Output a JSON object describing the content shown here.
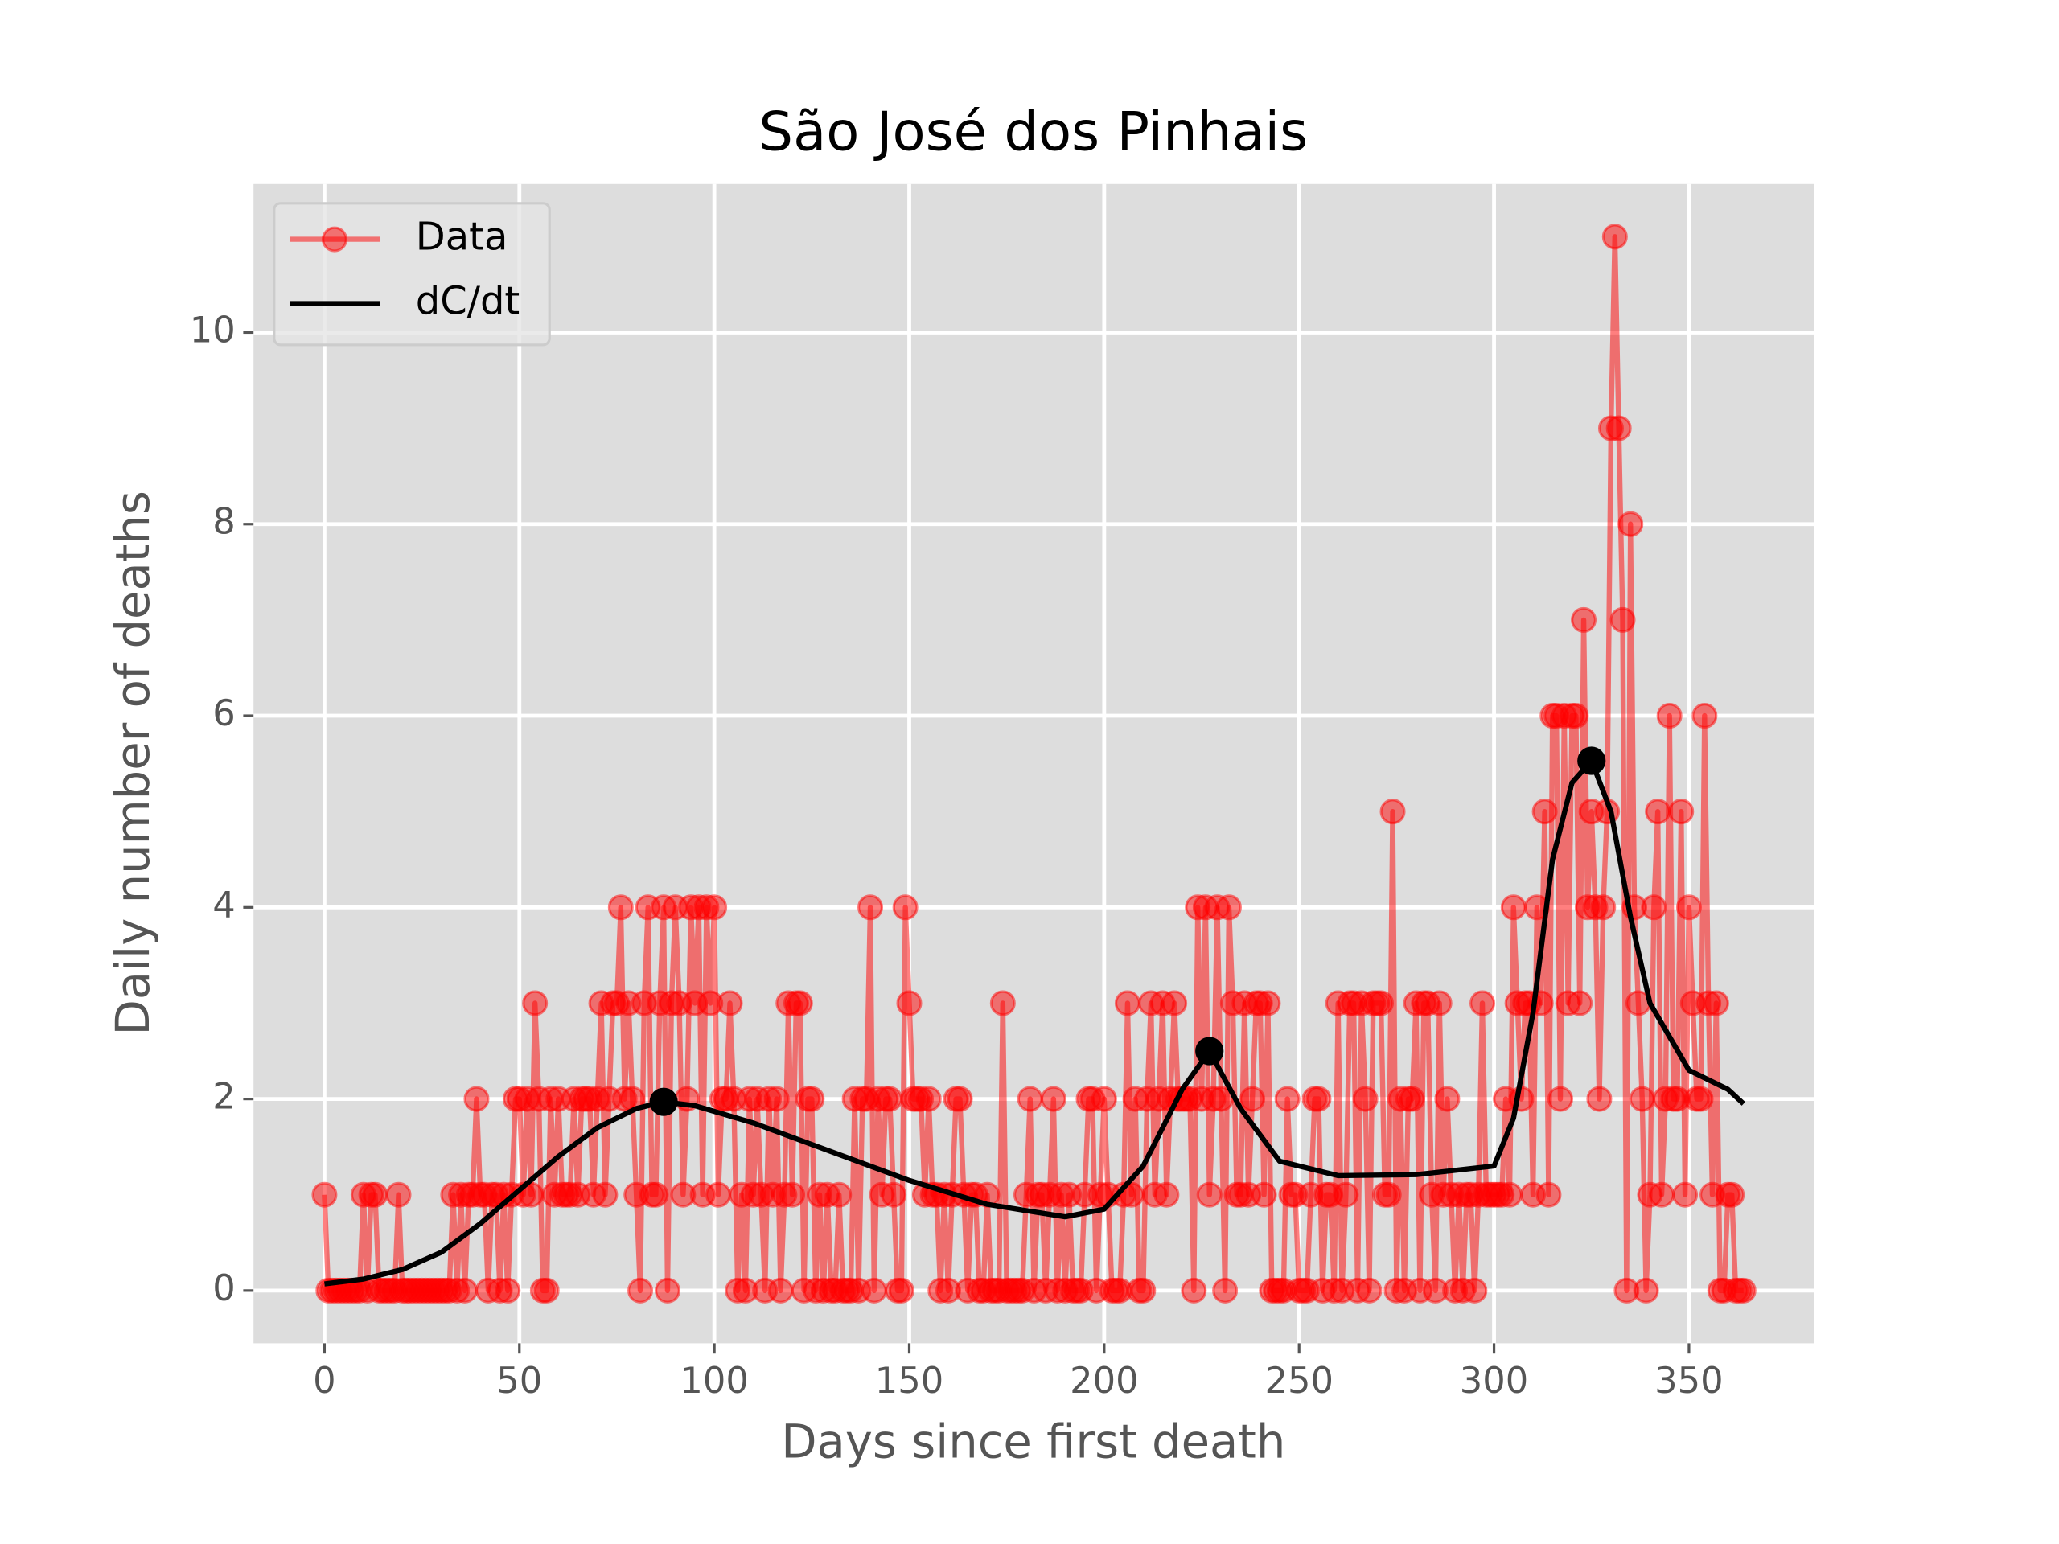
{
  "chart_data": {
    "type": "line",
    "title": "São José dos Pinhais",
    "xlabel": "Days since first death",
    "ylabel": "Daily number of deaths",
    "xlim": [
      -18.2,
      382.2
    ],
    "ylim": [
      -0.55,
      11.55
    ],
    "xticks": [
      0,
      50,
      100,
      150,
      200,
      250,
      300,
      350
    ],
    "yticks": [
      0,
      2,
      4,
      6,
      8,
      10
    ],
    "grid": true,
    "legend": "upper left",
    "series": [
      {
        "name": "Data",
        "color": "#ff0000",
        "marker": "o",
        "x": [
          0,
          1,
          2,
          3,
          4,
          5,
          6,
          7,
          8,
          9,
          10,
          11,
          12,
          13,
          14,
          15,
          16,
          17,
          18,
          19,
          20,
          21,
          22,
          23,
          24,
          25,
          26,
          27,
          28,
          29,
          30,
          31,
          32,
          33,
          34,
          35,
          36,
          37,
          38,
          39,
          40,
          41,
          42,
          43,
          44,
          45,
          46,
          47,
          48,
          49,
          50,
          51,
          52,
          53,
          54,
          55,
          56,
          57,
          58,
          59,
          60,
          61,
          62,
          63,
          64,
          65,
          66,
          67,
          68,
          69,
          70,
          71,
          72,
          73,
          74,
          75,
          76,
          77,
          78,
          79,
          80,
          81,
          82,
          83,
          84,
          85,
          86,
          87,
          88,
          89,
          90,
          91,
          92,
          93,
          94,
          95,
          96,
          97,
          98,
          99,
          100,
          101,
          102,
          103,
          104,
          105,
          106,
          107,
          108,
          109,
          110,
          111,
          112,
          113,
          114,
          115,
          116,
          117,
          118,
          119,
          120,
          121,
          122,
          123,
          124,
          125,
          126,
          127,
          128,
          129,
          130,
          131,
          132,
          133,
          134,
          135,
          136,
          137,
          138,
          139,
          140,
          141,
          142,
          143,
          144,
          145,
          146,
          147,
          148,
          149,
          150,
          151,
          152,
          153,
          154,
          155,
          156,
          157,
          158,
          159,
          160,
          161,
          162,
          163,
          164,
          165,
          166,
          167,
          168,
          169,
          170,
          171,
          172,
          173,
          174,
          175,
          176,
          177,
          178,
          179,
          180,
          181,
          182,
          183,
          184,
          185,
          186,
          187,
          188,
          189,
          190,
          191,
          192,
          193,
          194,
          195,
          196,
          197,
          198,
          199,
          200,
          201,
          202,
          203,
          204,
          205,
          206,
          207,
          208,
          209,
          210,
          211,
          212,
          213,
          214,
          215,
          216,
          217,
          218,
          219,
          220,
          221,
          222,
          223,
          224,
          225,
          226,
          227,
          228,
          229,
          230,
          231,
          232,
          233,
          234,
          235,
          236,
          237,
          238,
          239,
          240,
          241,
          242,
          243,
          244,
          245,
          246,
          247,
          248,
          249,
          250,
          251,
          252,
          253,
          254,
          255,
          256,
          257,
          258,
          259,
          260,
          261,
          262,
          263,
          264,
          265,
          266,
          267,
          268,
          269,
          270,
          271,
          272,
          273,
          274,
          275,
          276,
          277,
          278,
          279,
          280,
          281,
          282,
          283,
          284,
          285,
          286,
          287,
          288,
          289,
          290,
          291,
          292,
          293,
          294,
          295,
          296,
          297,
          298,
          299,
          300,
          301,
          302,
          303,
          304,
          305,
          306,
          307,
          308,
          309,
          310,
          311,
          312,
          313,
          314,
          315,
          316,
          317,
          318,
          319,
          320,
          321,
          322,
          323,
          324,
          325,
          326,
          327,
          328,
          329,
          330,
          331,
          332,
          333,
          334,
          335,
          336,
          337,
          338,
          339,
          340,
          341,
          342,
          343,
          344,
          345,
          346,
          347,
          348,
          349,
          350,
          351,
          352,
          353,
          354,
          355,
          356,
          357,
          358,
          359,
          360,
          361,
          362,
          363,
          364
        ],
        "values": [
          1,
          0,
          0,
          0,
          0,
          0,
          0,
          0,
          0,
          0,
          1,
          0,
          1,
          1,
          0,
          0,
          0,
          0,
          0,
          1,
          0,
          0,
          0,
          0,
          0,
          0,
          0,
          0,
          0,
          0,
          0,
          0,
          0,
          1,
          0,
          1,
          0,
          1,
          1,
          2,
          1,
          1,
          0,
          1,
          1,
          0,
          1,
          0,
          1,
          2,
          2,
          1,
          2,
          1,
          3,
          2,
          0,
          0,
          2,
          1,
          2,
          1,
          1,
          1,
          2,
          1,
          2,
          2,
          2,
          1,
          2,
          3,
          1,
          2,
          3,
          3,
          4,
          2,
          3,
          2,
          1,
          0,
          3,
          4,
          1,
          1,
          3,
          4,
          0,
          3,
          4,
          3,
          1,
          2,
          4,
          3,
          4,
          1,
          4,
          3,
          4,
          1,
          2,
          2,
          3,
          2,
          0,
          1,
          0,
          2,
          1,
          2,
          1,
          0,
          2,
          1,
          2,
          0,
          1,
          3,
          1,
          3,
          3,
          0,
          2,
          2,
          0,
          1,
          0,
          1,
          0,
          0,
          1,
          0,
          0,
          0,
          2,
          0,
          2,
          2,
          4,
          0,
          2,
          1,
          2,
          2,
          1,
          0,
          0,
          4,
          3,
          2,
          2,
          2,
          1,
          2,
          1,
          1,
          0,
          1,
          0,
          1,
          2,
          2,
          1,
          0,
          1,
          1,
          0,
          0,
          1,
          0,
          0,
          0,
          3,
          0,
          0,
          0,
          0,
          0,
          1,
          2,
          0,
          1,
          1,
          0,
          1,
          2,
          0,
          1,
          0,
          1,
          0,
          0,
          0,
          1,
          2,
          2,
          0,
          1,
          2,
          1,
          0,
          0,
          0,
          1,
          3,
          1,
          2,
          0,
          0,
          2,
          3,
          1,
          2,
          3,
          1,
          2,
          3,
          2,
          2,
          2,
          2,
          0,
          4,
          2,
          4,
          1,
          2,
          4,
          2,
          0,
          4,
          3,
          1,
          1,
          3,
          1,
          2,
          3,
          3,
          1,
          3,
          0,
          0,
          0,
          0,
          2,
          1,
          1,
          0,
          0,
          0,
          1,
          2,
          2,
          0,
          1,
          1,
          0,
          3,
          0,
          1,
          3,
          3,
          0,
          3,
          2,
          0,
          3,
          3,
          3,
          1,
          1,
          5,
          0,
          2,
          0,
          2,
          2,
          3,
          0,
          3,
          3,
          1,
          0,
          3,
          1,
          2,
          1,
          0,
          1,
          0,
          1,
          1,
          0,
          1,
          3,
          1,
          1,
          1,
          1,
          1,
          2,
          1,
          4,
          3,
          2,
          3,
          3,
          1,
          4,
          3,
          5,
          1,
          6,
          6,
          2,
          6,
          3,
          6,
          6,
          3,
          7,
          4,
          5,
          4,
          2,
          4,
          5,
          9,
          11,
          9,
          7,
          0,
          8,
          4,
          3,
          2,
          0,
          1,
          4,
          5,
          1,
          2,
          6,
          2,
          2,
          5,
          1,
          4,
          3,
          2,
          2,
          6,
          3,
          1,
          3,
          0,
          0,
          1,
          1,
          0,
          0,
          0
        ]
      },
      {
        "name": "dC/dt",
        "color": "#000000",
        "x": [
          0,
          10,
          20,
          30,
          40,
          50,
          60,
          70,
          80,
          87,
          95,
          110,
          130,
          150,
          170,
          190,
          200,
          210,
          220,
          227,
          235,
          245,
          260,
          280,
          300,
          305,
          310,
          315,
          320,
          325,
          330,
          335,
          340,
          350,
          360,
          364
        ],
        "values": [
          0.07,
          0.12,
          0.22,
          0.4,
          0.7,
          1.05,
          1.4,
          1.7,
          1.9,
          1.97,
          1.93,
          1.75,
          1.45,
          1.15,
          0.9,
          0.77,
          0.85,
          1.3,
          2.1,
          2.5,
          1.9,
          1.35,
          1.2,
          1.21,
          1.3,
          1.8,
          2.9,
          4.5,
          5.3,
          5.53,
          5.0,
          3.9,
          3.0,
          2.3,
          2.1,
          1.95
        ]
      }
    ],
    "peaks": {
      "color": "#000000",
      "x": [
        87,
        227,
        325
      ],
      "values": [
        1.97,
        2.5,
        5.53
      ]
    }
  }
}
